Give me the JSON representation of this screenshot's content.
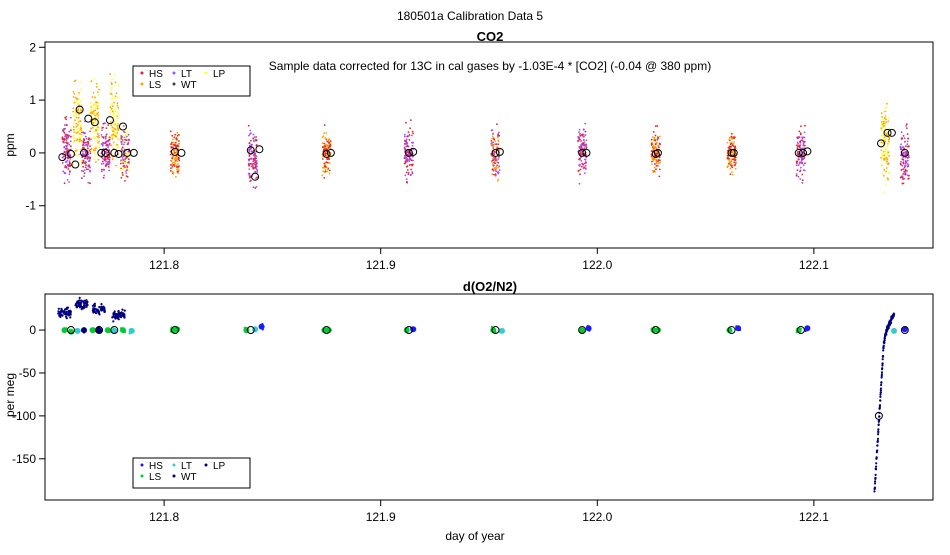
{
  "page_title": "180501a   Calibration Data 5",
  "colors": {
    "HS": "#e3242b",
    "LS": "#ffa500",
    "LT": "#a64dff",
    "WT": "#3b3b3b",
    "LP": "#ffff33",
    "o2_HS": "#1a1aff",
    "o2_LS": "#00cc33",
    "o2_LT": "#33cccc",
    "o2_WT": "#000080",
    "o2_LP": "#000080",
    "mean_marker": "#000000"
  },
  "chart_data": [
    {
      "type": "scatter",
      "title": "CO2",
      "annotation": "Sample data corrected for 13C in cal gases by -1.03E-4 * [CO2] (-0.04 @ 380 ppm)",
      "xlabel": "",
      "ylabel": "ppm",
      "xlim": [
        121.745,
        122.155
      ],
      "ylim": [
        -1.8,
        2.1
      ],
      "x_ticks": [
        121.8,
        121.9,
        122.0,
        122.1
      ],
      "x_tick_labels": [
        "121.8",
        "121.9",
        "122.0",
        "122.1"
      ],
      "y_ticks": [
        -1,
        0,
        1,
        2
      ],
      "y_tick_labels": [
        "-1",
        "0",
        "1",
        "2"
      ],
      "legend": {
        "placement": "top-left",
        "entries": [
          {
            "label": "HS",
            "color_key": "HS"
          },
          {
            "label": "LT",
            "color_key": "LT"
          },
          {
            "label": "LP",
            "color_key": "LP"
          },
          {
            "label": "LS",
            "color_key": "LS"
          },
          {
            "label": "WT",
            "color_key": "WT"
          }
        ]
      },
      "clusters": [
        {
          "x": 121.755,
          "y_center": 0.05,
          "spread": 0.6,
          "colors": [
            "LT",
            "HS"
          ]
        },
        {
          "x": 121.76,
          "y_center": 0.6,
          "spread": 0.8,
          "colors": [
            "LP",
            "LS"
          ]
        },
        {
          "x": 121.764,
          "y_center": 0.0,
          "spread": 0.5,
          "colors": [
            "HS",
            "LT"
          ]
        },
        {
          "x": 121.768,
          "y_center": 0.6,
          "spread": 0.8,
          "colors": [
            "LP",
            "LS"
          ]
        },
        {
          "x": 121.773,
          "y_center": 0.0,
          "spread": 0.5,
          "colors": [
            "HS",
            "LT"
          ]
        },
        {
          "x": 121.777,
          "y_center": 0.6,
          "spread": 0.8,
          "colors": [
            "LP",
            "LS"
          ]
        },
        {
          "x": 121.782,
          "y_center": 0.0,
          "spread": 0.5,
          "colors": [
            "HS",
            "LT",
            "LP"
          ]
        },
        {
          "x": 121.805,
          "y_center": 0.0,
          "spread": 0.5,
          "colors": [
            "LS",
            "HS"
          ]
        },
        {
          "x": 121.841,
          "y_center": -0.1,
          "spread": 0.6,
          "colors": [
            "HS",
            "LT"
          ]
        },
        {
          "x": 121.875,
          "y_center": 0.0,
          "spread": 0.4,
          "colors": [
            "LS",
            "HS"
          ]
        },
        {
          "x": 121.913,
          "y_center": 0.0,
          "spread": 0.5,
          "colors": [
            "HS",
            "LT"
          ]
        },
        {
          "x": 121.953,
          "y_center": 0.0,
          "spread": 0.5,
          "colors": [
            "LS",
            "HS",
            "LT"
          ]
        },
        {
          "x": 121.993,
          "y_center": 0.0,
          "spread": 0.5,
          "colors": [
            "HS",
            "LT"
          ]
        },
        {
          "x": 122.027,
          "y_center": 0.0,
          "spread": 0.4,
          "colors": [
            "LS",
            "HS"
          ]
        },
        {
          "x": 122.062,
          "y_center": 0.0,
          "spread": 0.4,
          "colors": [
            "LS",
            "HS"
          ]
        },
        {
          "x": 122.094,
          "y_center": 0.0,
          "spread": 0.5,
          "colors": [
            "HS",
            "LT"
          ]
        },
        {
          "x": 122.133,
          "y_center": 0.2,
          "spread": 0.8,
          "colors": [
            "LP",
            "LS"
          ]
        },
        {
          "x": 122.142,
          "y_center": -0.1,
          "spread": 0.5,
          "colors": [
            "HS",
            "LT"
          ]
        }
      ],
      "means": [
        {
          "x": 121.753,
          "y": -0.08
        },
        {
          "x": 121.757,
          "y": -0.02
        },
        {
          "x": 121.759,
          "y": -0.22
        },
        {
          "x": 121.761,
          "y": 0.82
        },
        {
          "x": 121.763,
          "y": 0.0
        },
        {
          "x": 121.765,
          "y": 0.65
        },
        {
          "x": 121.768,
          "y": 0.58
        },
        {
          "x": 121.771,
          "y": 0.0
        },
        {
          "x": 121.773,
          "y": 0.0
        },
        {
          "x": 121.775,
          "y": 0.62
        },
        {
          "x": 121.777,
          "y": 0.0
        },
        {
          "x": 121.779,
          "y": -0.02
        },
        {
          "x": 121.781,
          "y": 0.5
        },
        {
          "x": 121.783,
          "y": 0.0
        },
        {
          "x": 121.786,
          "y": 0.0
        },
        {
          "x": 121.805,
          "y": 0.02
        },
        {
          "x": 121.808,
          "y": 0.0
        },
        {
          "x": 121.84,
          "y": 0.05
        },
        {
          "x": 121.842,
          "y": -0.45
        },
        {
          "x": 121.844,
          "y": 0.07
        },
        {
          "x": 121.875,
          "y": -0.02
        },
        {
          "x": 121.877,
          "y": 0.0
        },
        {
          "x": 121.913,
          "y": 0.0
        },
        {
          "x": 121.915,
          "y": 0.02
        },
        {
          "x": 121.953,
          "y": 0.0
        },
        {
          "x": 121.955,
          "y": 0.02
        },
        {
          "x": 121.993,
          "y": 0.0
        },
        {
          "x": 121.995,
          "y": 0.0
        },
        {
          "x": 122.027,
          "y": -0.02
        },
        {
          "x": 122.028,
          "y": 0.0
        },
        {
          "x": 122.062,
          "y": 0.0
        },
        {
          "x": 122.063,
          "y": 0.0
        },
        {
          "x": 122.093,
          "y": 0.0
        },
        {
          "x": 122.095,
          "y": 0.0
        },
        {
          "x": 122.097,
          "y": 0.03
        },
        {
          "x": 122.131,
          "y": 0.18
        },
        {
          "x": 122.134,
          "y": 0.38
        },
        {
          "x": 122.136,
          "y": 0.38
        },
        {
          "x": 122.142,
          "y": 0.0
        }
      ]
    },
    {
      "type": "scatter",
      "title": "d(O2/N2)",
      "xlabel": "day of year",
      "ylabel": "per meg",
      "xlim": [
        121.745,
        122.155
      ],
      "ylim": [
        -198,
        42
      ],
      "x_ticks": [
        121.8,
        121.9,
        122.0,
        122.1
      ],
      "x_tick_labels": [
        "121.8",
        "121.9",
        "122.0",
        "122.1"
      ],
      "y_ticks": [
        -150,
        -100,
        -50,
        0
      ],
      "y_tick_labels": [
        "-150",
        "-100",
        "-50",
        "0"
      ],
      "legend": {
        "placement": "bottom-left",
        "entries": [
          {
            "label": "HS",
            "color_key": "o2_HS"
          },
          {
            "label": "LT",
            "color_key": "o2_LT"
          },
          {
            "label": "LP",
            "color_key": "o2_LP"
          },
          {
            "label": "LS",
            "color_key": "o2_LS"
          },
          {
            "label": "WT",
            "color_key": "o2_WT"
          }
        ]
      },
      "early_drift_clusters": [
        {
          "x": 121.754,
          "y": 20
        },
        {
          "x": 121.762,
          "y": 31
        },
        {
          "x": 121.77,
          "y": 24
        },
        {
          "x": 121.779,
          "y": 17
        }
      ],
      "baseline_points": [
        {
          "x": 121.754,
          "y": 0,
          "c": "o2_LS"
        },
        {
          "x": 121.757,
          "y": -2,
          "c": "o2_LS"
        },
        {
          "x": 121.76,
          "y": -1,
          "c": "o2_LT"
        },
        {
          "x": 121.763,
          "y": 0,
          "c": "o2_WT"
        },
        {
          "x": 121.767,
          "y": 0,
          "c": "o2_LS"
        },
        {
          "x": 121.77,
          "y": 0,
          "c": "o2_WT"
        },
        {
          "x": 121.774,
          "y": 0,
          "c": "o2_LS"
        },
        {
          "x": 121.777,
          "y": -1,
          "c": "o2_LT"
        },
        {
          "x": 121.781,
          "y": 0,
          "c": "o2_LS"
        },
        {
          "x": 121.785,
          "y": -1,
          "c": "o2_LT"
        },
        {
          "x": 121.804,
          "y": 0,
          "c": "o2_LS"
        },
        {
          "x": 121.806,
          "y": 1,
          "c": "o2_LS"
        },
        {
          "x": 121.838,
          "y": 0,
          "c": "o2_LS"
        },
        {
          "x": 121.842,
          "y": 1,
          "c": "o2_LT"
        },
        {
          "x": 121.845,
          "y": 4,
          "c": "o2_HS"
        },
        {
          "x": 121.874,
          "y": 0,
          "c": "o2_LS"
        },
        {
          "x": 121.876,
          "y": 0,
          "c": "o2_LS"
        },
        {
          "x": 121.912,
          "y": 0,
          "c": "o2_LS"
        },
        {
          "x": 121.915,
          "y": 1,
          "c": "o2_HS"
        },
        {
          "x": 121.952,
          "y": 0,
          "c": "o2_LS"
        },
        {
          "x": 121.956,
          "y": -1,
          "c": "o2_LT"
        },
        {
          "x": 121.993,
          "y": 0,
          "c": "o2_LS"
        },
        {
          "x": 121.996,
          "y": 2,
          "c": "o2_HS"
        },
        {
          "x": 122.026,
          "y": 0,
          "c": "o2_LS"
        },
        {
          "x": 122.028,
          "y": 0,
          "c": "o2_LS"
        },
        {
          "x": 122.061,
          "y": 0,
          "c": "o2_LS"
        },
        {
          "x": 122.065,
          "y": 2,
          "c": "o2_HS"
        },
        {
          "x": 122.093,
          "y": 0,
          "c": "o2_LS"
        },
        {
          "x": 122.097,
          "y": 2,
          "c": "o2_HS"
        },
        {
          "x": 122.137,
          "y": -1,
          "c": "o2_LT"
        },
        {
          "x": 122.142,
          "y": 1,
          "c": "o2_HS"
        }
      ],
      "recovery_curve": {
        "x_start": 122.128,
        "x_end": 122.137,
        "y_start": -188,
        "y_mid": -25,
        "y_end": 18
      },
      "means": [
        {
          "x": 121.757,
          "y": 0
        },
        {
          "x": 121.77,
          "y": 0
        },
        {
          "x": 121.777,
          "y": 0
        },
        {
          "x": 121.805,
          "y": 0
        },
        {
          "x": 121.84,
          "y": 0
        },
        {
          "x": 121.875,
          "y": 0
        },
        {
          "x": 121.913,
          "y": 0
        },
        {
          "x": 121.953,
          "y": 0
        },
        {
          "x": 121.993,
          "y": 0
        },
        {
          "x": 122.027,
          "y": 0
        },
        {
          "x": 122.062,
          "y": 0
        },
        {
          "x": 122.094,
          "y": 0
        },
        {
          "x": 122.13,
          "y": -100
        },
        {
          "x": 122.142,
          "y": 0
        }
      ]
    }
  ]
}
